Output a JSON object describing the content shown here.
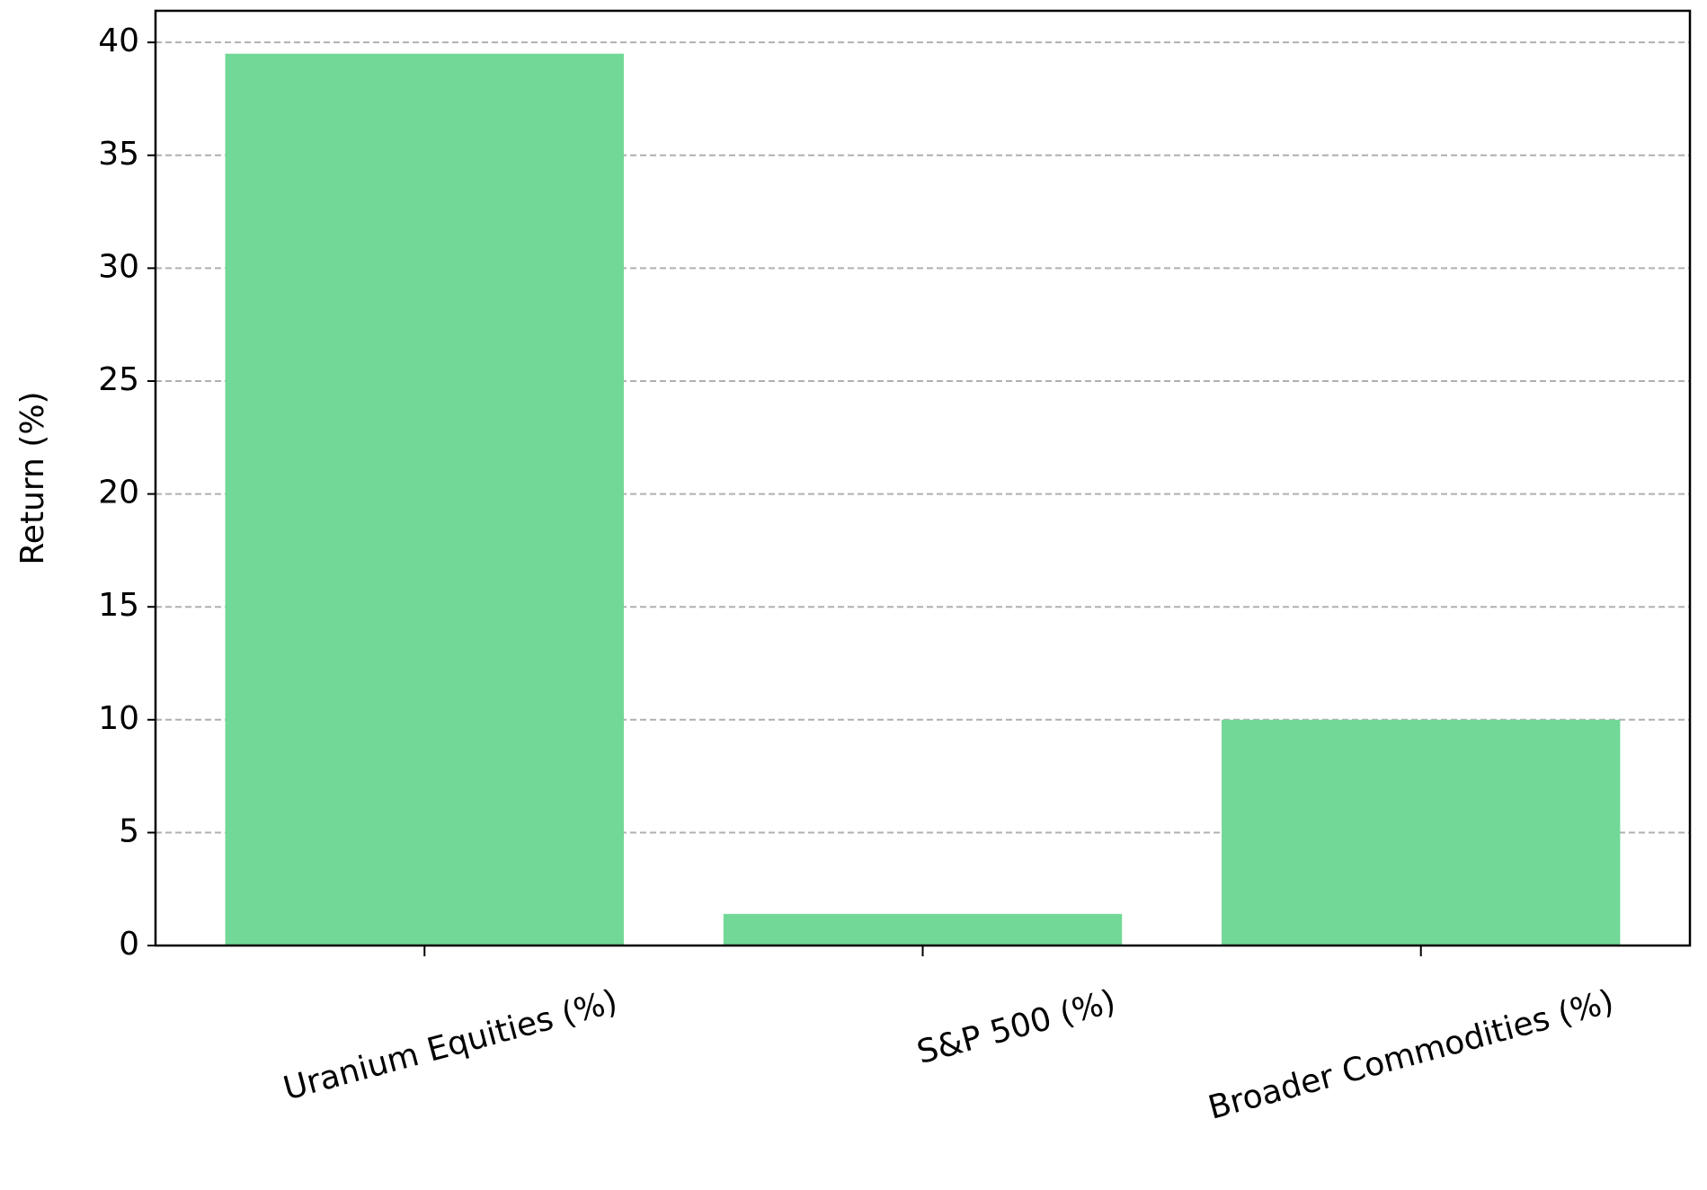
{
  "chart_data": {
    "type": "bar",
    "y_label": "Return (%)",
    "categories": [
      "Uranium Equities (%)",
      "S&P 500 (%)",
      "Broader Commodities (%)"
    ],
    "values": [
      39.5,
      1.4,
      10
    ],
    "color": "#72d897",
    "ylim": [
      0,
      41.4
    ],
    "yticks": [
      0,
      5,
      10,
      15,
      20,
      25,
      30,
      35,
      40
    ],
    "grid": true
  }
}
